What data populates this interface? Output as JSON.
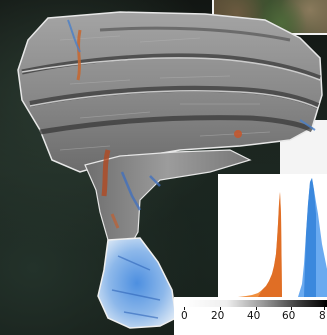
{
  "figure": {
    "scale_bar": {
      "ticks": [
        "0",
        "20",
        "40",
        "60",
        "8"
      ]
    },
    "histograms": {
      "left_color": "#e8781e",
      "right_color": "#3a8fe0"
    },
    "colors": {
      "rock_surface": "#8c8c8c",
      "highlight_orange": "#d9622a",
      "highlight_blue": "#3b7fd6"
    }
  }
}
